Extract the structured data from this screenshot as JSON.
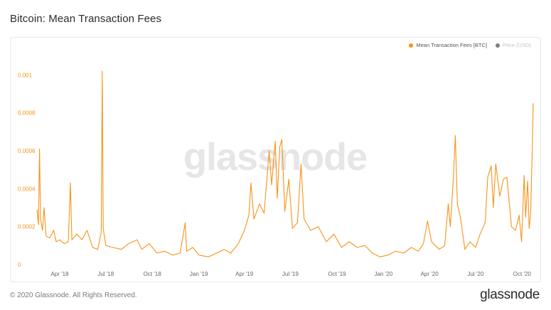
{
  "title": "Bitcoin: Mean Transaction Fees",
  "watermark": "glassnode",
  "footer": {
    "copyright": "© 2020 Glassnode. All Rights Reserved.",
    "logo": "glassnode"
  },
  "legend": [
    {
      "label": "Mean Transaction Fees [BTC]",
      "color": "#f7931a",
      "active": true
    },
    {
      "label": "Price (USD)",
      "color": "#7d7d7d",
      "active": false
    }
  ],
  "chart_data": {
    "type": "line",
    "title": "Bitcoin: Mean Transaction Fees",
    "xlabel": "",
    "ylabel": "",
    "ylim": [
      0,
      0.00105
    ],
    "grid": false,
    "legend_position": "top-right",
    "y_ticks": [
      "0",
      "0.0002",
      "0.0004",
      "0.0006",
      "0.0008",
      "0.001"
    ],
    "y_tick_values": [
      0,
      0.0002,
      0.0004,
      0.0006,
      0.0008,
      0.001
    ],
    "x_ticks": [
      "Apr '18",
      "Jul '18",
      "Oct '18",
      "Jan '19",
      "Apr '19",
      "Jul '19",
      "Oct '19",
      "Jan '20",
      "Apr '20",
      "Jul '20",
      "Oct '20"
    ],
    "x_tick_dates": [
      "2018-04-01",
      "2018-07-01",
      "2018-10-01",
      "2019-01-01",
      "2019-04-01",
      "2019-07-01",
      "2019-10-01",
      "2020-01-01",
      "2020-04-01",
      "2020-07-01",
      "2020-10-01"
    ],
    "x_range": [
      "2018-02-15",
      "2020-10-23"
    ],
    "series": [
      {
        "name": "Mean Transaction Fees [BTC]",
        "color": "#f7931a",
        "points": [
          [
            "2018-02-15",
            0.00029
          ],
          [
            "2018-02-18",
            0.00021
          ],
          [
            "2018-02-20",
            0.00061
          ],
          [
            "2018-02-22",
            0.00024
          ],
          [
            "2018-02-26",
            0.00018
          ],
          [
            "2018-03-01",
            0.0003
          ],
          [
            "2018-03-05",
            0.00015
          ],
          [
            "2018-03-12",
            0.00014
          ],
          [
            "2018-03-20",
            0.00018
          ],
          [
            "2018-03-25",
            0.00012
          ],
          [
            "2018-04-01",
            0.00013
          ],
          [
            "2018-04-10",
            0.00011
          ],
          [
            "2018-04-18",
            0.00012
          ],
          [
            "2018-04-22",
            0.00043
          ],
          [
            "2018-04-25",
            0.00013
          ],
          [
            "2018-05-05",
            0.00016
          ],
          [
            "2018-05-15",
            0.00013
          ],
          [
            "2018-05-25",
            0.00018
          ],
          [
            "2018-06-05",
            9e-05
          ],
          [
            "2018-06-15",
            8e-05
          ],
          [
            "2018-06-22",
            0.00017
          ],
          [
            "2018-06-24",
            0.00102
          ],
          [
            "2018-06-26",
            0.00019
          ],
          [
            "2018-07-01",
            0.0001
          ],
          [
            "2018-07-15",
            9e-05
          ],
          [
            "2018-08-01",
            8e-05
          ],
          [
            "2018-08-15",
            0.00011
          ],
          [
            "2018-09-01",
            0.00013
          ],
          [
            "2018-09-10",
            8e-05
          ],
          [
            "2018-09-25",
            0.00011
          ],
          [
            "2018-10-10",
            6e-05
          ],
          [
            "2018-10-25",
            7e-05
          ],
          [
            "2018-11-10",
            5e-05
          ],
          [
            "2018-11-25",
            6e-05
          ],
          [
            "2018-12-05",
            0.00022
          ],
          [
            "2018-12-08",
            7e-05
          ],
          [
            "2018-12-20",
            9e-05
          ],
          [
            "2019-01-01",
            5e-05
          ],
          [
            "2019-01-20",
            4e-05
          ],
          [
            "2019-02-05",
            6e-05
          ],
          [
            "2019-02-20",
            8e-05
          ],
          [
            "2019-03-05",
            6e-05
          ],
          [
            "2019-03-20",
            0.00011
          ],
          [
            "2019-04-01",
            0.00018
          ],
          [
            "2019-04-10",
            0.00026
          ],
          [
            "2019-04-14",
            0.00043
          ],
          [
            "2019-04-20",
            0.00024
          ],
          [
            "2019-05-01",
            0.00032
          ],
          [
            "2019-05-10",
            0.00027
          ],
          [
            "2019-05-20",
            0.0006
          ],
          [
            "2019-05-25",
            0.00042
          ],
          [
            "2019-06-01",
            0.00065
          ],
          [
            "2019-06-05",
            0.00035
          ],
          [
            "2019-06-10",
            0.00062
          ],
          [
            "2019-06-14",
            0.00066
          ],
          [
            "2019-06-20",
            0.00028
          ],
          [
            "2019-06-28",
            0.00045
          ],
          [
            "2019-07-05",
            0.00019
          ],
          [
            "2019-07-15",
            0.00022
          ],
          [
            "2019-07-22",
            0.00053
          ],
          [
            "2019-07-28",
            0.00024
          ],
          [
            "2019-08-10",
            0.00018
          ],
          [
            "2019-08-25",
            0.0002
          ],
          [
            "2019-09-10",
            0.00012
          ],
          [
            "2019-09-25",
            0.00016
          ],
          [
            "2019-10-10",
            9e-05
          ],
          [
            "2019-10-25",
            0.00012
          ],
          [
            "2019-11-10",
            9e-05
          ],
          [
            "2019-11-25",
            0.0001
          ],
          [
            "2019-12-10",
            6e-05
          ],
          [
            "2019-12-25",
            4e-05
          ],
          [
            "2020-01-10",
            5e-05
          ],
          [
            "2020-01-25",
            7e-05
          ],
          [
            "2020-02-10",
            6e-05
          ],
          [
            "2020-02-25",
            9e-05
          ],
          [
            "2020-03-10",
            7e-05
          ],
          [
            "2020-03-20",
            0.00011
          ],
          [
            "2020-03-28",
            0.00023
          ],
          [
            "2020-04-05",
            0.00012
          ],
          [
            "2020-04-20",
            8e-05
          ],
          [
            "2020-05-01",
            0.0001
          ],
          [
            "2020-05-08",
            0.00032
          ],
          [
            "2020-05-12",
            0.0002
          ],
          [
            "2020-05-18",
            0.00045
          ],
          [
            "2020-05-22",
            0.00068
          ],
          [
            "2020-05-26",
            0.00032
          ],
          [
            "2020-06-01",
            0.00025
          ],
          [
            "2020-06-10",
            8e-05
          ],
          [
            "2020-06-20",
            0.00012
          ],
          [
            "2020-07-01",
            9e-05
          ],
          [
            "2020-07-10",
            0.00016
          ],
          [
            "2020-07-20",
            0.00022
          ],
          [
            "2020-07-25",
            0.00046
          ],
          [
            "2020-08-01",
            0.00052
          ],
          [
            "2020-08-05",
            0.0003
          ],
          [
            "2020-08-10",
            0.00053
          ],
          [
            "2020-08-18",
            0.00036
          ],
          [
            "2020-08-25",
            0.00045
          ],
          [
            "2020-09-01",
            0.00046
          ],
          [
            "2020-09-10",
            0.0002
          ],
          [
            "2020-09-18",
            0.00018
          ],
          [
            "2020-09-25",
            0.00026
          ],
          [
            "2020-09-30",
            0.00012
          ],
          [
            "2020-10-05",
            0.00047
          ],
          [
            "2020-10-08",
            0.00025
          ],
          [
            "2020-10-12",
            0.00044
          ],
          [
            "2020-10-15",
            0.00019
          ],
          [
            "2020-10-18",
            0.00027
          ],
          [
            "2020-10-21",
            0.0006
          ],
          [
            "2020-10-23",
            0.00085
          ]
        ]
      }
    ]
  }
}
